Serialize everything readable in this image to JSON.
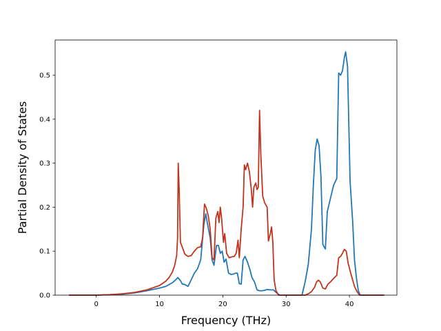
{
  "chart_data": {
    "type": "line",
    "xlabel": "Frequency (THz)",
    "ylabel": "Partial Density of States",
    "xlim": [
      -6.5,
      47.5
    ],
    "ylim": [
      0,
      0.58
    ],
    "grid": false,
    "x_ticks": [
      0,
      10,
      20,
      30,
      40
    ],
    "y_ticks": [
      0.0,
      0.1,
      0.2,
      0.3,
      0.4,
      0.5
    ],
    "x_tick_labels": [
      "0",
      "10",
      "20",
      "30",
      "40"
    ],
    "y_tick_labels": [
      "0.0",
      "0.1",
      "0.2",
      "0.3",
      "0.4",
      "0.5"
    ],
    "series": [
      {
        "color": "#1f77b4",
        "points": [
          [
            -4.3,
            0
          ],
          [
            0,
            0
          ],
          [
            2,
            0.001
          ],
          [
            4,
            0.002
          ],
          [
            6,
            0.005
          ],
          [
            8,
            0.01
          ],
          [
            10,
            0.016
          ],
          [
            11,
            0.02
          ],
          [
            11.5,
            0.024
          ],
          [
            12.0,
            0.028
          ],
          [
            12.5,
            0.034
          ],
          [
            12.9,
            0.04
          ],
          [
            13.3,
            0.033
          ],
          [
            13.6,
            0.025
          ],
          [
            14.0,
            0.024
          ],
          [
            14.5,
            0.02
          ],
          [
            15.0,
            0.035
          ],
          [
            15.5,
            0.05
          ],
          [
            16.0,
            0.06
          ],
          [
            16.5,
            0.08
          ],
          [
            17.0,
            0.16
          ],
          [
            17.3,
            0.185
          ],
          [
            17.6,
            0.16
          ],
          [
            18.0,
            0.13
          ],
          [
            18.3,
            0.08
          ],
          [
            18.6,
            0.068
          ],
          [
            19.0,
            0.113
          ],
          [
            19.3,
            0.113
          ],
          [
            19.6,
            0.095
          ],
          [
            19.9,
            0.1
          ],
          [
            20.2,
            0.075
          ],
          [
            20.5,
            0.082
          ],
          [
            20.9,
            0.05
          ],
          [
            21.3,
            0.047
          ],
          [
            21.7,
            0.048
          ],
          [
            22.0,
            0.05
          ],
          [
            22.3,
            0.05
          ],
          [
            22.6,
            0.026
          ],
          [
            22.9,
            0.025
          ],
          [
            23.2,
            0.08
          ],
          [
            23.5,
            0.088
          ],
          [
            23.9,
            0.075
          ],
          [
            24.3,
            0.057
          ],
          [
            24.6,
            0.04
          ],
          [
            25.0,
            0.03
          ],
          [
            25.4,
            0.012
          ],
          [
            25.8,
            0.01
          ],
          [
            26.2,
            0.01
          ],
          [
            26.6,
            0.011
          ],
          [
            27.0,
            0.013
          ],
          [
            27.5,
            0.012
          ],
          [
            28.0,
            0.012
          ],
          [
            28.5,
            0.005
          ],
          [
            29.0,
            0
          ],
          [
            32.5,
            0
          ],
          [
            33,
            0.03
          ],
          [
            33.5,
            0.07
          ],
          [
            34.0,
            0.15
          ],
          [
            34.3,
            0.25
          ],
          [
            34.6,
            0.33
          ],
          [
            34.9,
            0.355
          ],
          [
            35.2,
            0.34
          ],
          [
            35.5,
            0.27
          ],
          [
            35.8,
            0.115
          ],
          [
            36.2,
            0.105
          ],
          [
            36.5,
            0.19
          ],
          [
            37.0,
            0.22
          ],
          [
            37.5,
            0.25
          ],
          [
            38.0,
            0.265
          ],
          [
            38.3,
            0.505
          ],
          [
            38.6,
            0.5
          ],
          [
            38.9,
            0.51
          ],
          [
            39.2,
            0.54
          ],
          [
            39.4,
            0.553
          ],
          [
            39.7,
            0.52
          ],
          [
            40.1,
            0.26
          ],
          [
            40.5,
            0.17
          ],
          [
            40.8,
            0.08
          ],
          [
            41.1,
            0.04
          ],
          [
            41.4,
            0.01
          ],
          [
            41.7,
            0
          ],
          [
            45.5,
            0
          ]
        ]
      },
      {
        "color": "#c1331d",
        "points": [
          [
            -4.3,
            0
          ],
          [
            0,
            0
          ],
          [
            2,
            0.001
          ],
          [
            4,
            0.003
          ],
          [
            6,
            0.006
          ],
          [
            8,
            0.012
          ],
          [
            10,
            0.022
          ],
          [
            11,
            0.032
          ],
          [
            11.5,
            0.04
          ],
          [
            12.0,
            0.052
          ],
          [
            12.4,
            0.068
          ],
          [
            12.7,
            0.09
          ],
          [
            12.85,
            0.13
          ],
          [
            12.95,
            0.3
          ],
          [
            13.1,
            0.24
          ],
          [
            13.3,
            0.12
          ],
          [
            13.7,
            0.105
          ],
          [
            14.0,
            0.093
          ],
          [
            14.5,
            0.088
          ],
          [
            15.0,
            0.09
          ],
          [
            15.5,
            0.1
          ],
          [
            16.0,
            0.108
          ],
          [
            16.5,
            0.11
          ],
          [
            16.8,
            0.13
          ],
          [
            17.1,
            0.207
          ],
          [
            17.4,
            0.197
          ],
          [
            17.7,
            0.18
          ],
          [
            18.0,
            0.15
          ],
          [
            18.3,
            0.085
          ],
          [
            18.6,
            0.08
          ],
          [
            18.9,
            0.175
          ],
          [
            19.2,
            0.19
          ],
          [
            19.4,
            0.165
          ],
          [
            19.6,
            0.2
          ],
          [
            19.8,
            0.175
          ],
          [
            20.1,
            0.12
          ],
          [
            20.3,
            0.14
          ],
          [
            20.6,
            0.095
          ],
          [
            21.0,
            0.085
          ],
          [
            21.4,
            0.087
          ],
          [
            21.8,
            0.088
          ],
          [
            22.1,
            0.095
          ],
          [
            22.4,
            0.125
          ],
          [
            22.6,
            0.085
          ],
          [
            22.9,
            0.15
          ],
          [
            23.2,
            0.2
          ],
          [
            23.4,
            0.296
          ],
          [
            23.6,
            0.285
          ],
          [
            23.9,
            0.3
          ],
          [
            24.2,
            0.28
          ],
          [
            24.5,
            0.24
          ],
          [
            24.7,
            0.2
          ],
          [
            24.9,
            0.245
          ],
          [
            25.2,
            0.255
          ],
          [
            25.4,
            0.24
          ],
          [
            25.6,
            0.245
          ],
          [
            25.8,
            0.42
          ],
          [
            26.0,
            0.32
          ],
          [
            26.3,
            0.225
          ],
          [
            26.6,
            0.21
          ],
          [
            27.0,
            0.2
          ],
          [
            27.2,
            0.123
          ],
          [
            27.5,
            0.14
          ],
          [
            27.7,
            0.155
          ],
          [
            27.9,
            0.12
          ],
          [
            28.1,
            0.035
          ],
          [
            28.4,
            0.01
          ],
          [
            28.8,
            0
          ],
          [
            33,
            0
          ],
          [
            33.5,
            0.003
          ],
          [
            34.0,
            0.008
          ],
          [
            34.5,
            0.018
          ],
          [
            34.8,
            0.03
          ],
          [
            35.1,
            0.034
          ],
          [
            35.4,
            0.03
          ],
          [
            35.8,
            0.016
          ],
          [
            36.2,
            0.014
          ],
          [
            36.6,
            0.025
          ],
          [
            37.0,
            0.03
          ],
          [
            37.5,
            0.038
          ],
          [
            38.0,
            0.045
          ],
          [
            38.3,
            0.085
          ],
          [
            38.6,
            0.088
          ],
          [
            38.9,
            0.095
          ],
          [
            39.2,
            0.104
          ],
          [
            39.5,
            0.1
          ],
          [
            39.8,
            0.072
          ],
          [
            40.2,
            0.05
          ],
          [
            40.5,
            0.035
          ],
          [
            40.8,
            0.02
          ],
          [
            41.2,
            0.008
          ],
          [
            41.6,
            0
          ],
          [
            45.5,
            0
          ]
        ]
      }
    ]
  }
}
